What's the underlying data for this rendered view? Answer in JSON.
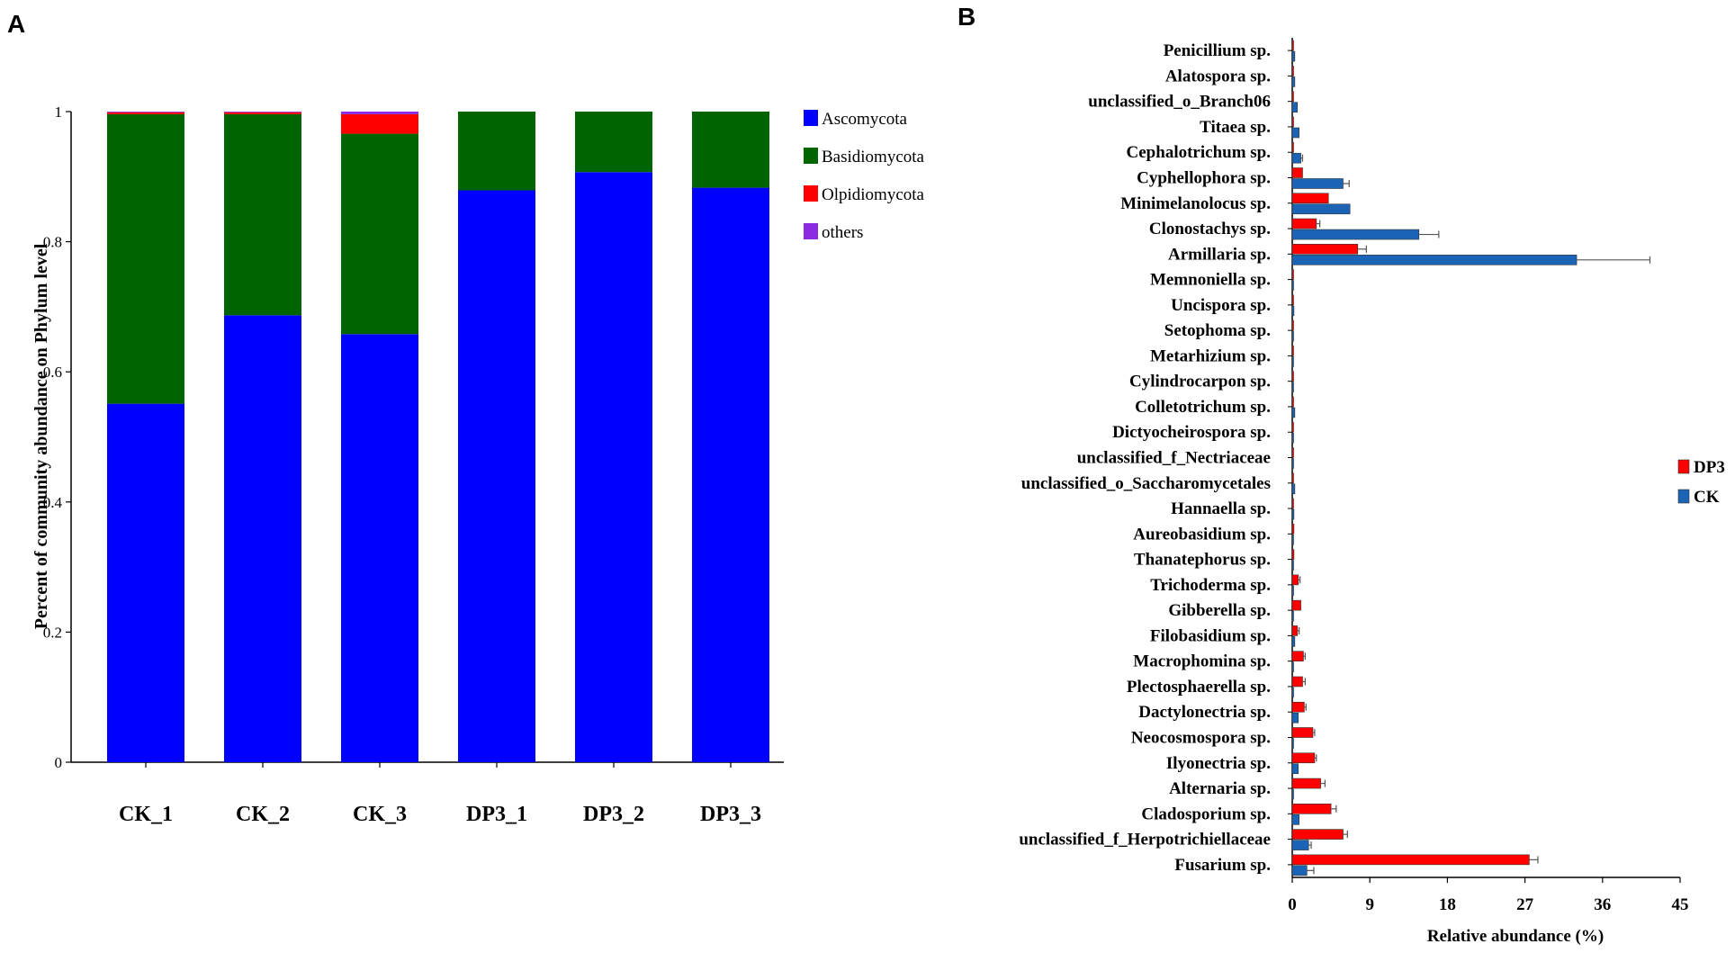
{
  "panel_a_label": "A",
  "panel_b_label": "B",
  "chart_data": [
    {
      "type": "bar",
      "stacked": true,
      "title": "",
      "xlabel": "",
      "ylabel": "Percent of community abundance on Phylum level",
      "ylim": [
        0,
        1
      ],
      "yticks": [
        "0",
        "0.2",
        "0.4",
        "0.6",
        "0.8",
        "1"
      ],
      "ytick_values": [
        0,
        0.2,
        0.4,
        0.6,
        0.8,
        1
      ],
      "categories": [
        "CK_1",
        "CK_2",
        "CK_3",
        "DP3_1",
        "DP3_2",
        "DP3_3"
      ],
      "legend_position": "top-right",
      "series": [
        {
          "name": "Ascomycota",
          "color": "#0000ff",
          "values": [
            0.551,
            0.687,
            0.658,
            0.879,
            0.907,
            0.883
          ]
        },
        {
          "name": "Basidiomycota",
          "color": "#006400",
          "values": [
            0.445,
            0.309,
            0.308,
            0.121,
            0.093,
            0.117
          ]
        },
        {
          "name": "Olpidiomycota",
          "color": "#ff0000",
          "values": [
            0.003,
            0.003,
            0.03,
            0.0,
            0.0,
            0.0
          ]
        },
        {
          "name": "others",
          "color": "#8a2be2",
          "values": [
            0.001,
            0.001,
            0.004,
            0.0,
            0.0,
            0.0
          ]
        }
      ]
    },
    {
      "type": "bar",
      "orientation": "horizontal",
      "title": "",
      "xlabel": "Relative abundance (%)",
      "ylabel": "",
      "xlim": [
        0,
        45
      ],
      "xticks": [
        "0",
        "9",
        "18",
        "27",
        "36",
        "45"
      ],
      "xtick_values": [
        0,
        9,
        18,
        27,
        36,
        45
      ],
      "legend_position": "right",
      "categories": [
        "Penicillium sp.",
        "Alatospora sp.",
        "unclassified_o_Branch06",
        "Titaea sp.",
        "Cephalotrichum sp.",
        "Cyphellophora sp.",
        "Minimelanolocus sp.",
        "Clonostachys sp.",
        "Armillaria sp.",
        "Memnoniella sp.",
        "Uncispora sp.",
        "Setophoma sp.",
        "Metarhizium sp.",
        "Cylindrocarpon sp.",
        "Colletotrichum sp.",
        "Dictyocheirospora sp.",
        "unclassified_f_Nectriaceae",
        "unclassified_o_Saccharomycetales",
        "Hannaella sp.",
        "Aureobasidium sp.",
        "Thanatephorus sp.",
        "Trichoderma sp.",
        "Gibberella sp.",
        "Filobasidium sp.",
        "Macrophomina sp.",
        "Plectosphaerella sp.",
        "Dactylonectria sp.",
        "Neocosmospora sp.",
        "Ilyonectria sp.",
        "Alternaria sp.",
        "Cladosporium sp.",
        "unclassified_f_Herpotrichiellaceae",
        "Fusarium sp."
      ],
      "series": [
        {
          "name": "DP3",
          "color": "#ff0000",
          "values": [
            0.05,
            0.05,
            0.05,
            0.05,
            0.1,
            1.2,
            4.2,
            2.8,
            7.6,
            0.05,
            0.05,
            0.05,
            0.05,
            0.05,
            0.05,
            0.05,
            0.05,
            0.05,
            0.05,
            0.2,
            0.2,
            0.7,
            1.0,
            0.6,
            1.3,
            1.2,
            1.4,
            2.4,
            2.6,
            3.3,
            4.5,
            5.9,
            27.5
          ],
          "errors": [
            0,
            0,
            0,
            0,
            0,
            0,
            0,
            0.4,
            1.0,
            0,
            0,
            0,
            0,
            0,
            0,
            0,
            0,
            0,
            0,
            0,
            0,
            0.2,
            0,
            0.2,
            0.2,
            0.3,
            0.2,
            0.2,
            0.2,
            0.5,
            0.6,
            0.5,
            1.0
          ]
        },
        {
          "name": "CK",
          "color": "#1b64b5",
          "values": [
            0.3,
            0.3,
            0.6,
            0.8,
            1.0,
            5.9,
            6.7,
            14.7,
            33.0,
            0.05,
            0.2,
            0.05,
            0.1,
            0.05,
            0.3,
            0.05,
            0.1,
            0.3,
            0.2,
            0.05,
            0.05,
            0.05,
            0.05,
            0.3,
            0.05,
            0.05,
            0.7,
            0.05,
            0.7,
            0.05,
            0.8,
            1.9,
            1.7
          ],
          "errors": [
            0,
            0,
            0,
            0,
            0.2,
            0.7,
            0,
            2.3,
            8.5,
            0,
            0,
            0,
            0,
            0,
            0,
            0,
            0,
            0,
            0,
            0,
            0,
            0,
            0,
            0,
            0,
            0,
            0,
            0,
            0,
            0,
            0,
            0.3,
            0.8
          ]
        }
      ]
    }
  ]
}
